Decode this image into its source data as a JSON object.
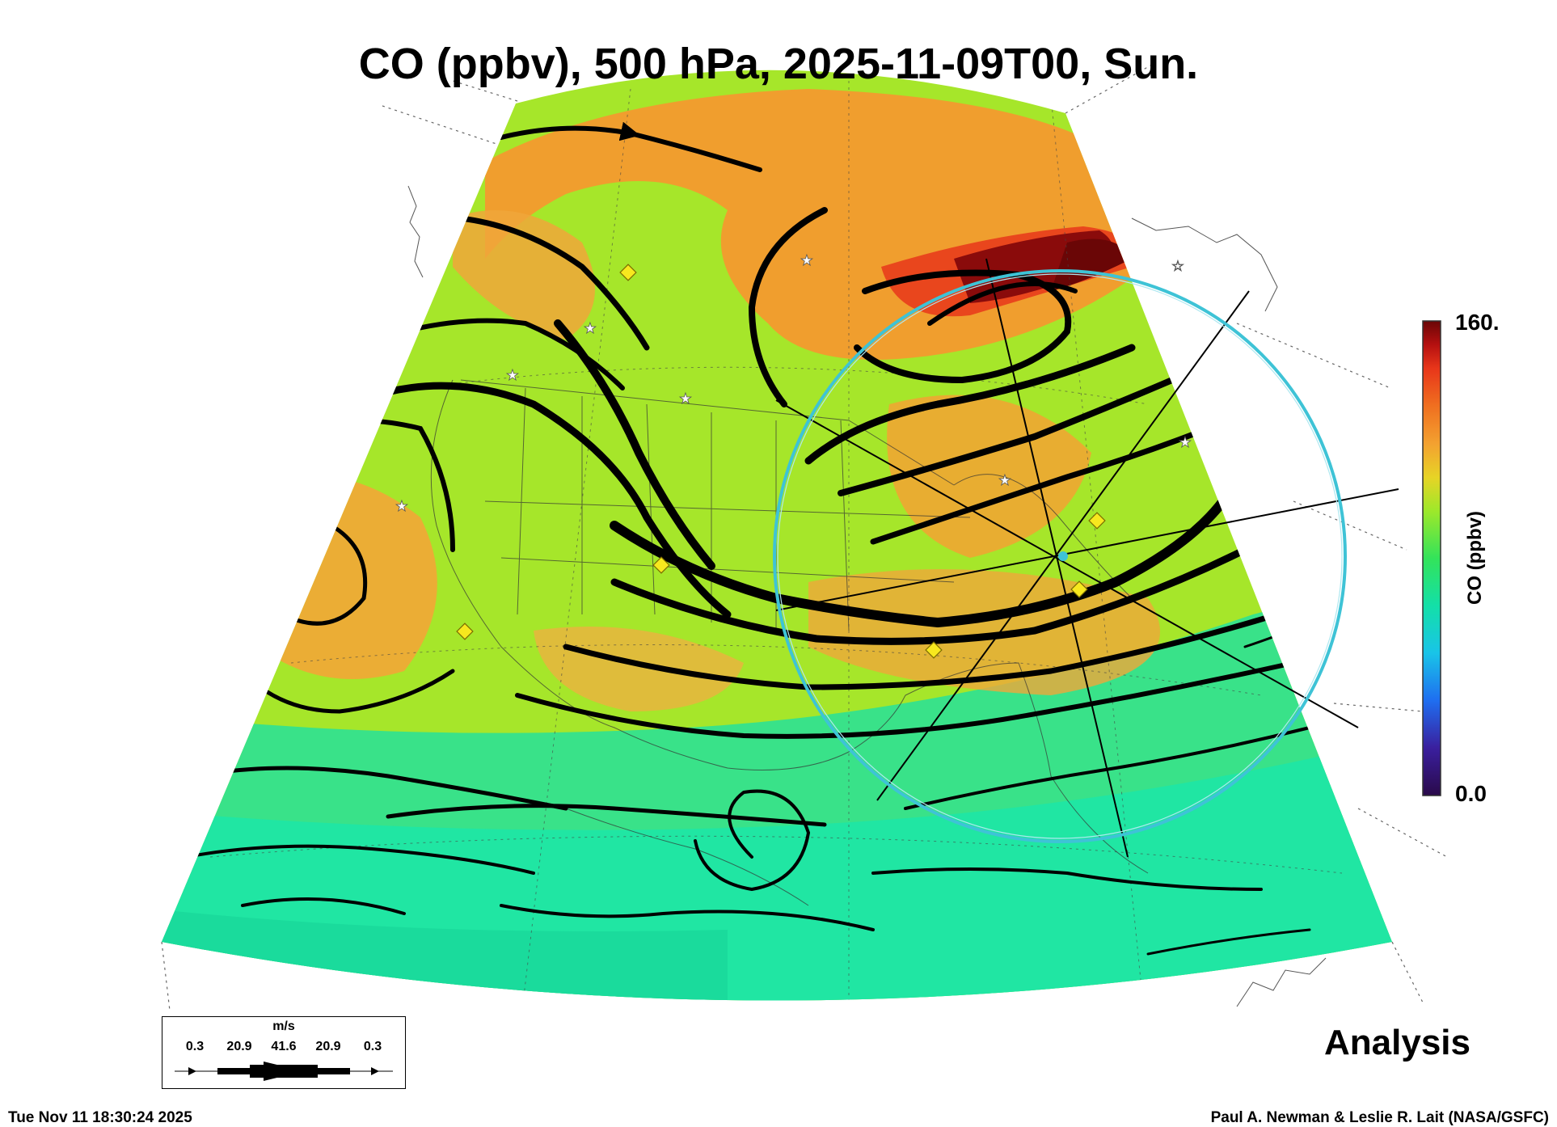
{
  "title": "CO (ppbv), 500 hPa, 2025-11-09T00, Sun.",
  "colorbar": {
    "max_label": "160.",
    "min_label": "0.0",
    "label": "CO (ppbv)",
    "range": [
      0,
      160
    ],
    "colors": [
      "#2a0a4a",
      "#3a1f9e",
      "#1f6ef0",
      "#19c4e8",
      "#13e0a8",
      "#33e35a",
      "#9ee82a",
      "#e7d426",
      "#f3a230",
      "#f07020",
      "#e8361a",
      "#b51010",
      "#6a0606"
    ]
  },
  "legend": {
    "unit": "m/s",
    "ticks": [
      "0.3",
      "20.9",
      "41.6",
      "20.9",
      "0.3"
    ]
  },
  "analysis_label": "Analysis",
  "footer": {
    "timestamp": "Tue Nov 11 18:30:24 2025",
    "credit": "Paul A. Newman & Leslie R. Lait (NASA/GSFC)"
  },
  "overlay_colors": {
    "streamline": "#000000",
    "ring": "#3ec3d6",
    "diamond": "#f7e81e",
    "star": "#ffffff"
  },
  "fields": {
    "tropics": "#22e692",
    "midlat": "#a6e62a",
    "high_co": "#f39a2e",
    "plume": "#7a0a0a"
  }
}
